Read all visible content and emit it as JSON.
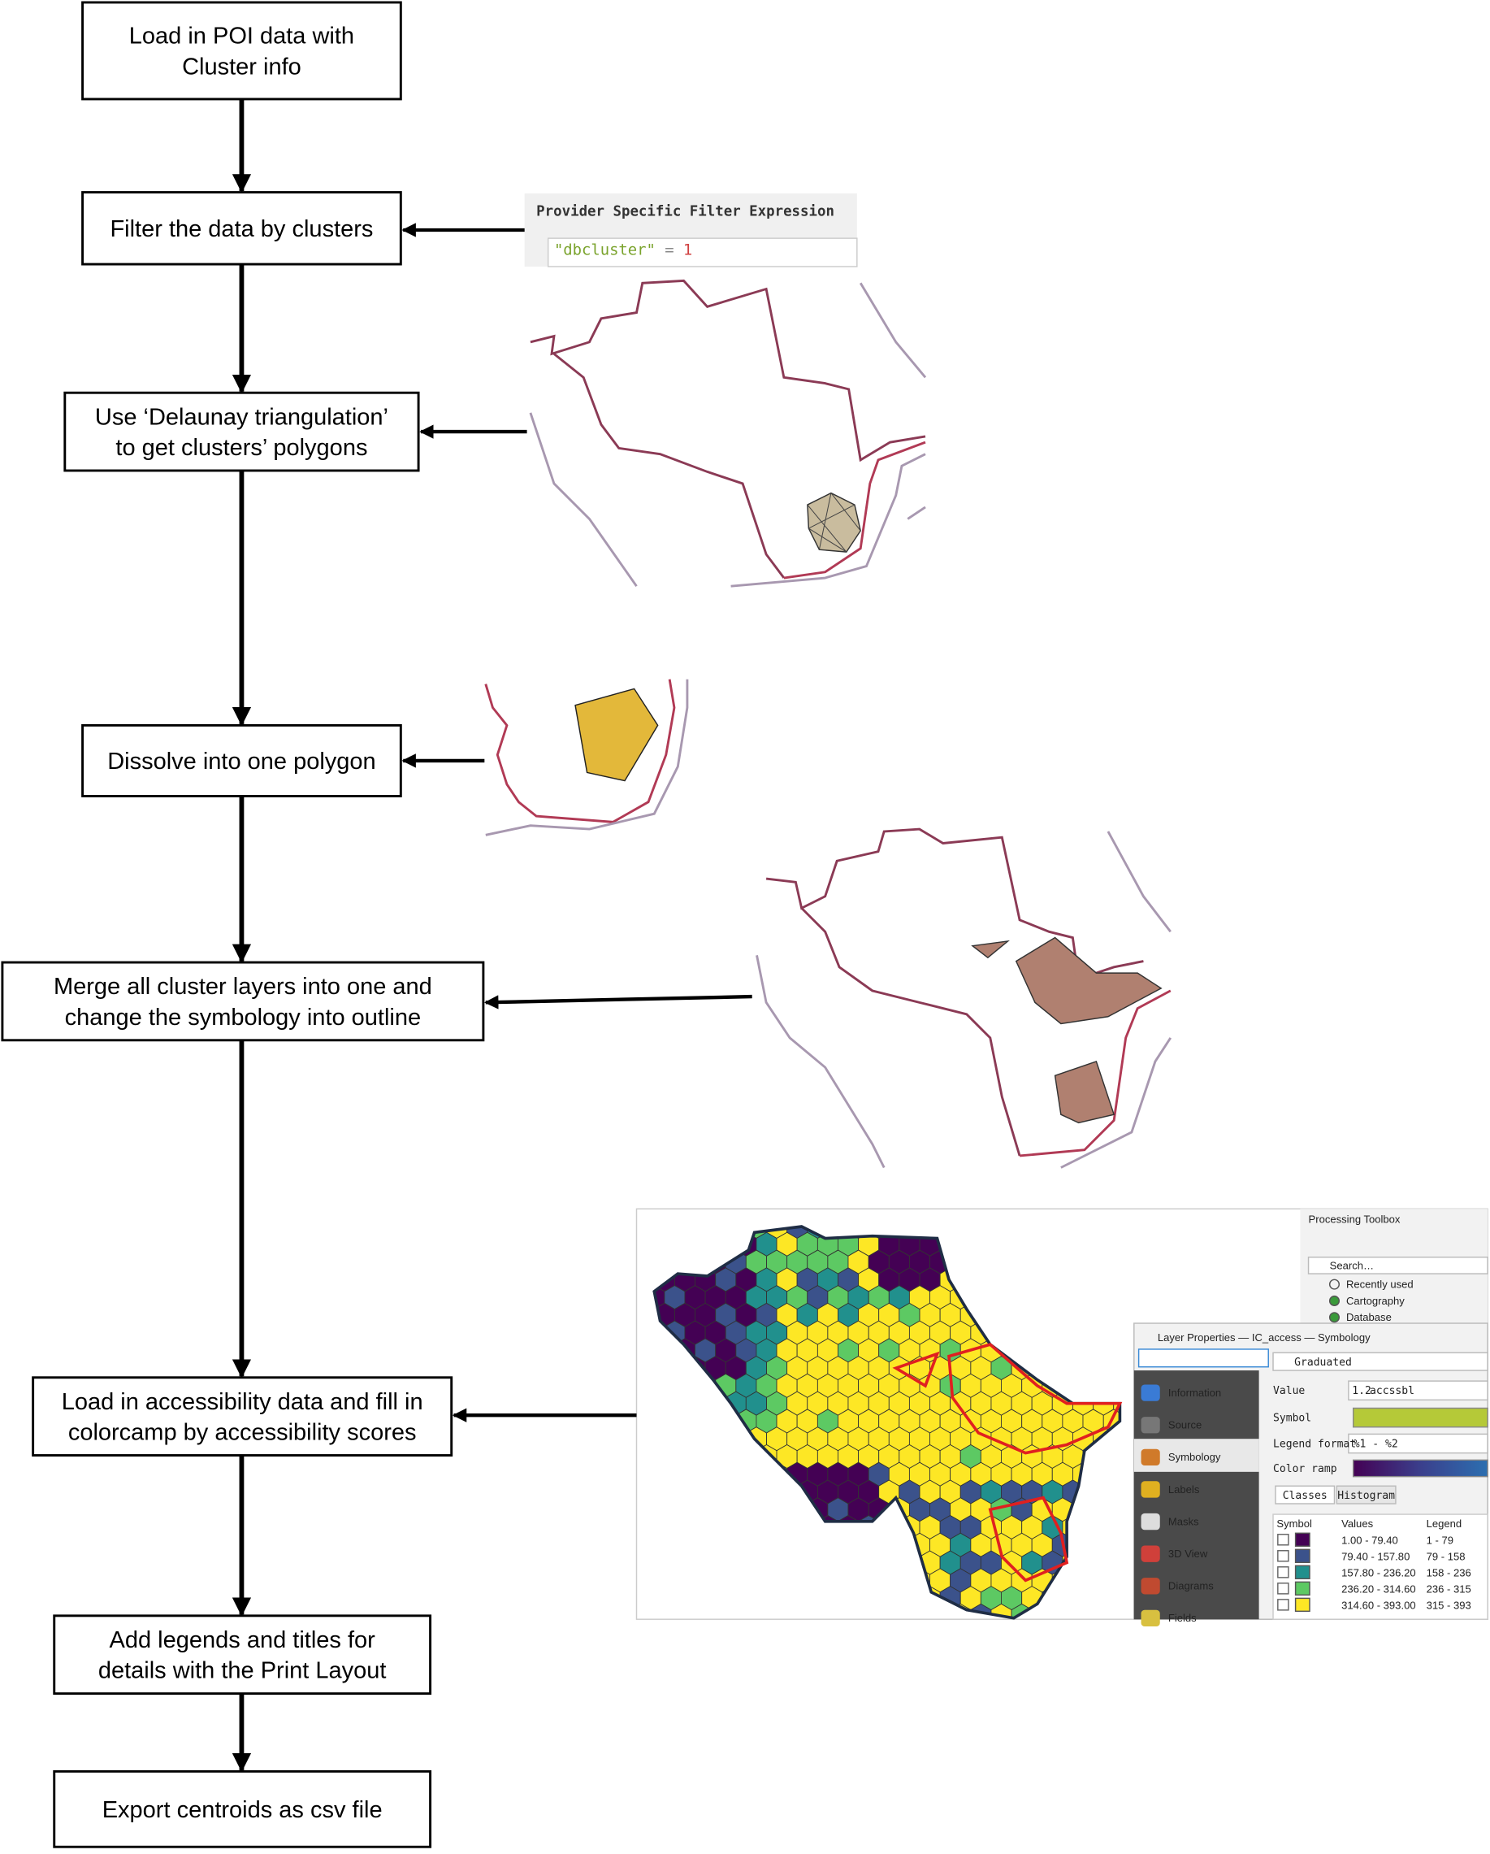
{
  "steps": [
    {
      "lines": [
        "Load in POI data with",
        "Cluster info"
      ]
    },
    {
      "lines": [
        "Filter the data by clusters"
      ]
    },
    {
      "lines": [
        "Use ‘Delaunay triangulation’",
        "to get clusters’ polygons"
      ]
    },
    {
      "lines": [
        "Dissolve into one polygon"
      ]
    },
    {
      "lines": [
        "Merge all cluster layers into one and",
        "change the symbology into outline"
      ]
    },
    {
      "lines": [
        "Load in accessibility data and fill in",
        "colorcamp by accessibility scores"
      ]
    },
    {
      "lines": [
        "Add legends and titles for",
        "details with the Print Layout"
      ]
    },
    {
      "lines": [
        "Export centroids as csv file"
      ]
    }
  ],
  "filter_panel": {
    "title": "Provider Specific Filter Expression",
    "field": "\"dbcluster\"",
    "operator": "=",
    "value": "1"
  },
  "qgis": {
    "toolbox": {
      "title": "Processing Toolbox",
      "search": "Search…",
      "items": [
        "Recently used",
        "Cartography",
        "Database"
      ]
    },
    "dialog": {
      "title": "Layer Properties — IC_access — Symbology",
      "menu": [
        "Information",
        "Source",
        "Symbology",
        "Labels",
        "Masks",
        "3D View",
        "Diagrams",
        "Fields"
      ],
      "renderer": "Graduated",
      "value_label": "Value",
      "value_icon": "1.2",
      "value": "accssbl",
      "symbol_label": "Symbol",
      "symbol_color": "#b5c938",
      "format_label": "Legend format",
      "format": "%1 - %2",
      "ramp_label": "Color ramp",
      "tabs": [
        "Classes",
        "Histogram"
      ],
      "columns": [
        "Symbol",
        "Values",
        "Legend"
      ],
      "classes": [
        {
          "color": "#440154",
          "values": "1.00 - 79.40",
          "legend": "1 - 79"
        },
        {
          "color": "#3b528b",
          "values": "79.40 - 157.80",
          "legend": "79 - 158"
        },
        {
          "color": "#21908d",
          "values": "157.80 - 236.20",
          "legend": "158 - 236"
        },
        {
          "color": "#5dc963",
          "values": "236.20 - 314.60",
          "legend": "236 - 315"
        },
        {
          "color": "#fde725",
          "values": "314.60 - 393.00",
          "legend": "315 - 393"
        }
      ]
    }
  }
}
